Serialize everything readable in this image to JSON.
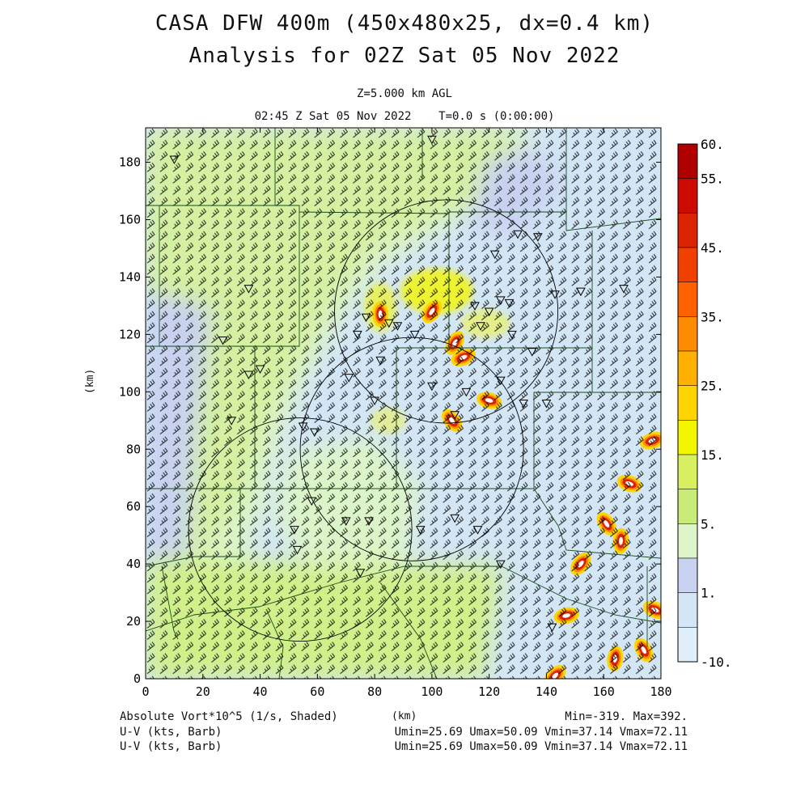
{
  "title": {
    "line1": "CASA DFW 400m (450x480x25, dx=0.4 km)",
    "line2": "Analysis for 02Z Sat 05 Nov 2022"
  },
  "subtitle": {
    "level": "Z=5.000 km AGL",
    "time": "02:45 Z Sat 05 Nov 2022    T=0.0 s (0:00:00)"
  },
  "footer": {
    "left": [
      "Absolute Vort*10^5 (1/s, Shaded)",
      "U-V (kts, Barb)",
      "U-V (kts, Barb)"
    ],
    "xunit": "(km)",
    "minmax": "Min=-319. Max=392.",
    "uv1": "Umin=25.69 Umax=50.09 Vmin=37.14 Vmax=72.11",
    "uv2": "Umin=25.69 Umax=50.09 Vmin=37.14 Vmax=72.11"
  },
  "colors": {
    "very_light_blue": "#e0f0fa",
    "light_blue": "#d2e6f6",
    "lavender": "#c8d2f0",
    "pale_green": "#dcf5c8",
    "yellow_green": "#d0f08a",
    "red": "#e02000",
    "dark_red": "#b00000"
  },
  "chart_data": {
    "type": "heatmap",
    "ylabel": "(km)",
    "xlabel": "(km)",
    "xlim": [
      0,
      180
    ],
    "ylim": [
      0,
      192
    ],
    "xticks": [
      0,
      20,
      40,
      60,
      80,
      100,
      120,
      140,
      160,
      180
    ],
    "yticks": [
      0,
      20,
      40,
      60,
      80,
      100,
      120,
      140,
      160,
      180
    ],
    "colorbar": {
      "labels": [
        "60.",
        "55.",
        "45.",
        "35.",
        "25.",
        "15.",
        "5.",
        "1.",
        "-10."
      ],
      "label_values": [
        60,
        55,
        45,
        35,
        25,
        15,
        5,
        1,
        -10
      ],
      "bins": [
        {
          "color": "#b00000"
        },
        {
          "color": "#cc0a00"
        },
        {
          "color": "#dc2400"
        },
        {
          "color": "#f04000"
        },
        {
          "color": "#ff6000"
        },
        {
          "color": "#ff8c00"
        },
        {
          "color": "#ffb000"
        },
        {
          "color": "#ffd400"
        },
        {
          "color": "#f4f600"
        },
        {
          "color": "#d8f060"
        },
        {
          "color": "#c8ec78"
        },
        {
          "color": "#dcf5c8"
        },
        {
          "color": "#c8d2f0"
        },
        {
          "color": "#d2e6f6"
        },
        {
          "color": "#e0f0fa"
        }
      ]
    },
    "radar_rings_km": [
      {
        "cx": 105,
        "cy": 128,
        "r": 39
      },
      {
        "cx": 93,
        "cy": 80,
        "r": 39
      },
      {
        "cx": 54,
        "cy": 52,
        "r": 39
      }
    ],
    "wind_barbs": "uniform southwesterly flow, ~40-60 kts",
    "vorticity_maxima_km": [
      {
        "x": 108,
        "y": 117
      },
      {
        "x": 111,
        "y": 112
      },
      {
        "x": 120,
        "y": 97
      },
      {
        "x": 107,
        "y": 90
      },
      {
        "x": 82,
        "y": 127
      },
      {
        "x": 100,
        "y": 128
      },
      {
        "x": 177,
        "y": 83
      },
      {
        "x": 169,
        "y": 68
      },
      {
        "x": 161,
        "y": 54
      },
      {
        "x": 166,
        "y": 48
      },
      {
        "x": 152,
        "y": 40
      },
      {
        "x": 147,
        "y": 22
      },
      {
        "x": 178,
        "y": 24
      },
      {
        "x": 174,
        "y": 10
      },
      {
        "x": 164,
        "y": 7
      },
      {
        "x": 143,
        "y": 1
      }
    ]
  }
}
